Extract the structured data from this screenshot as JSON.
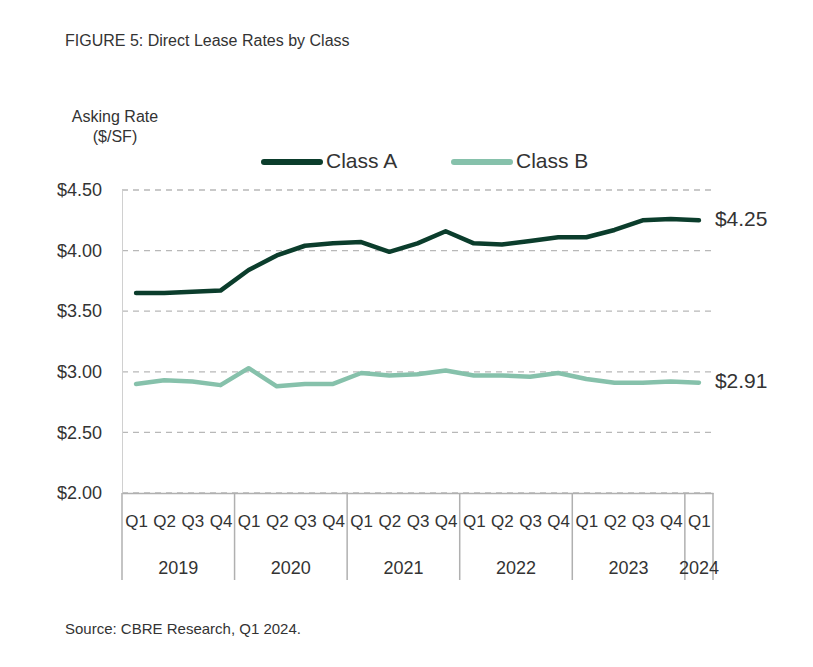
{
  "chart_data": {
    "type": "line",
    "title": "FIGURE 5: Direct Lease Rates by Class",
    "ylabel": [
      "Asking Rate",
      "($/SF)"
    ],
    "source": "Source: CBRE Research, Q1 2024.",
    "categories": [
      "Q1",
      "Q2",
      "Q3",
      "Q4",
      "Q1",
      "Q2",
      "Q3",
      "Q4",
      "Q1",
      "Q2",
      "Q3",
      "Q4",
      "Q1",
      "Q2",
      "Q3",
      "Q4",
      "Q1",
      "Q2",
      "Q3",
      "Q4",
      "Q1"
    ],
    "category_groups": [
      "2019",
      "2019",
      "2019",
      "2019",
      "2020",
      "2020",
      "2020",
      "2020",
      "2021",
      "2021",
      "2021",
      "2021",
      "2022",
      "2022",
      "2022",
      "2022",
      "2023",
      "2023",
      "2023",
      "2023",
      "2024"
    ],
    "series": [
      {
        "name": "Class A",
        "color": "#0b3d2c",
        "values": [
          3.65,
          3.65,
          3.66,
          3.67,
          3.84,
          3.96,
          4.04,
          4.06,
          4.07,
          3.99,
          4.06,
          4.16,
          4.06,
          4.05,
          4.08,
          4.11,
          4.11,
          4.17,
          4.25,
          4.26,
          4.25
        ],
        "value_labels": [
          null,
          null,
          null,
          null,
          null,
          null,
          null,
          null,
          null,
          null,
          null,
          null,
          null,
          null,
          null,
          null,
          null,
          null,
          null,
          null,
          "$4.25"
        ]
      },
      {
        "name": "Class B",
        "color": "#86c1ab",
        "values": [
          2.9,
          2.93,
          2.92,
          2.89,
          3.03,
          2.88,
          2.9,
          2.9,
          2.99,
          2.97,
          2.98,
          3.01,
          2.97,
          2.97,
          2.96,
          2.99,
          2.94,
          2.91,
          2.91,
          2.92,
          2.91
        ],
        "value_labels": [
          null,
          null,
          null,
          null,
          null,
          null,
          null,
          null,
          null,
          null,
          null,
          null,
          null,
          null,
          null,
          null,
          null,
          null,
          null,
          null,
          "$2.91"
        ]
      }
    ],
    "ylim": [
      2.0,
      4.5
    ],
    "yticks": [
      {
        "value": 2.0,
        "label": "$2.00"
      },
      {
        "value": 2.5,
        "label": "$2.50"
      },
      {
        "value": 3.0,
        "label": "$3.00"
      },
      {
        "value": 3.5,
        "label": "$3.50"
      },
      {
        "value": 4.0,
        "label": "$4.00"
      },
      {
        "value": 4.5,
        "label": "$4.50"
      }
    ],
    "grid": true,
    "legend": "top"
  }
}
